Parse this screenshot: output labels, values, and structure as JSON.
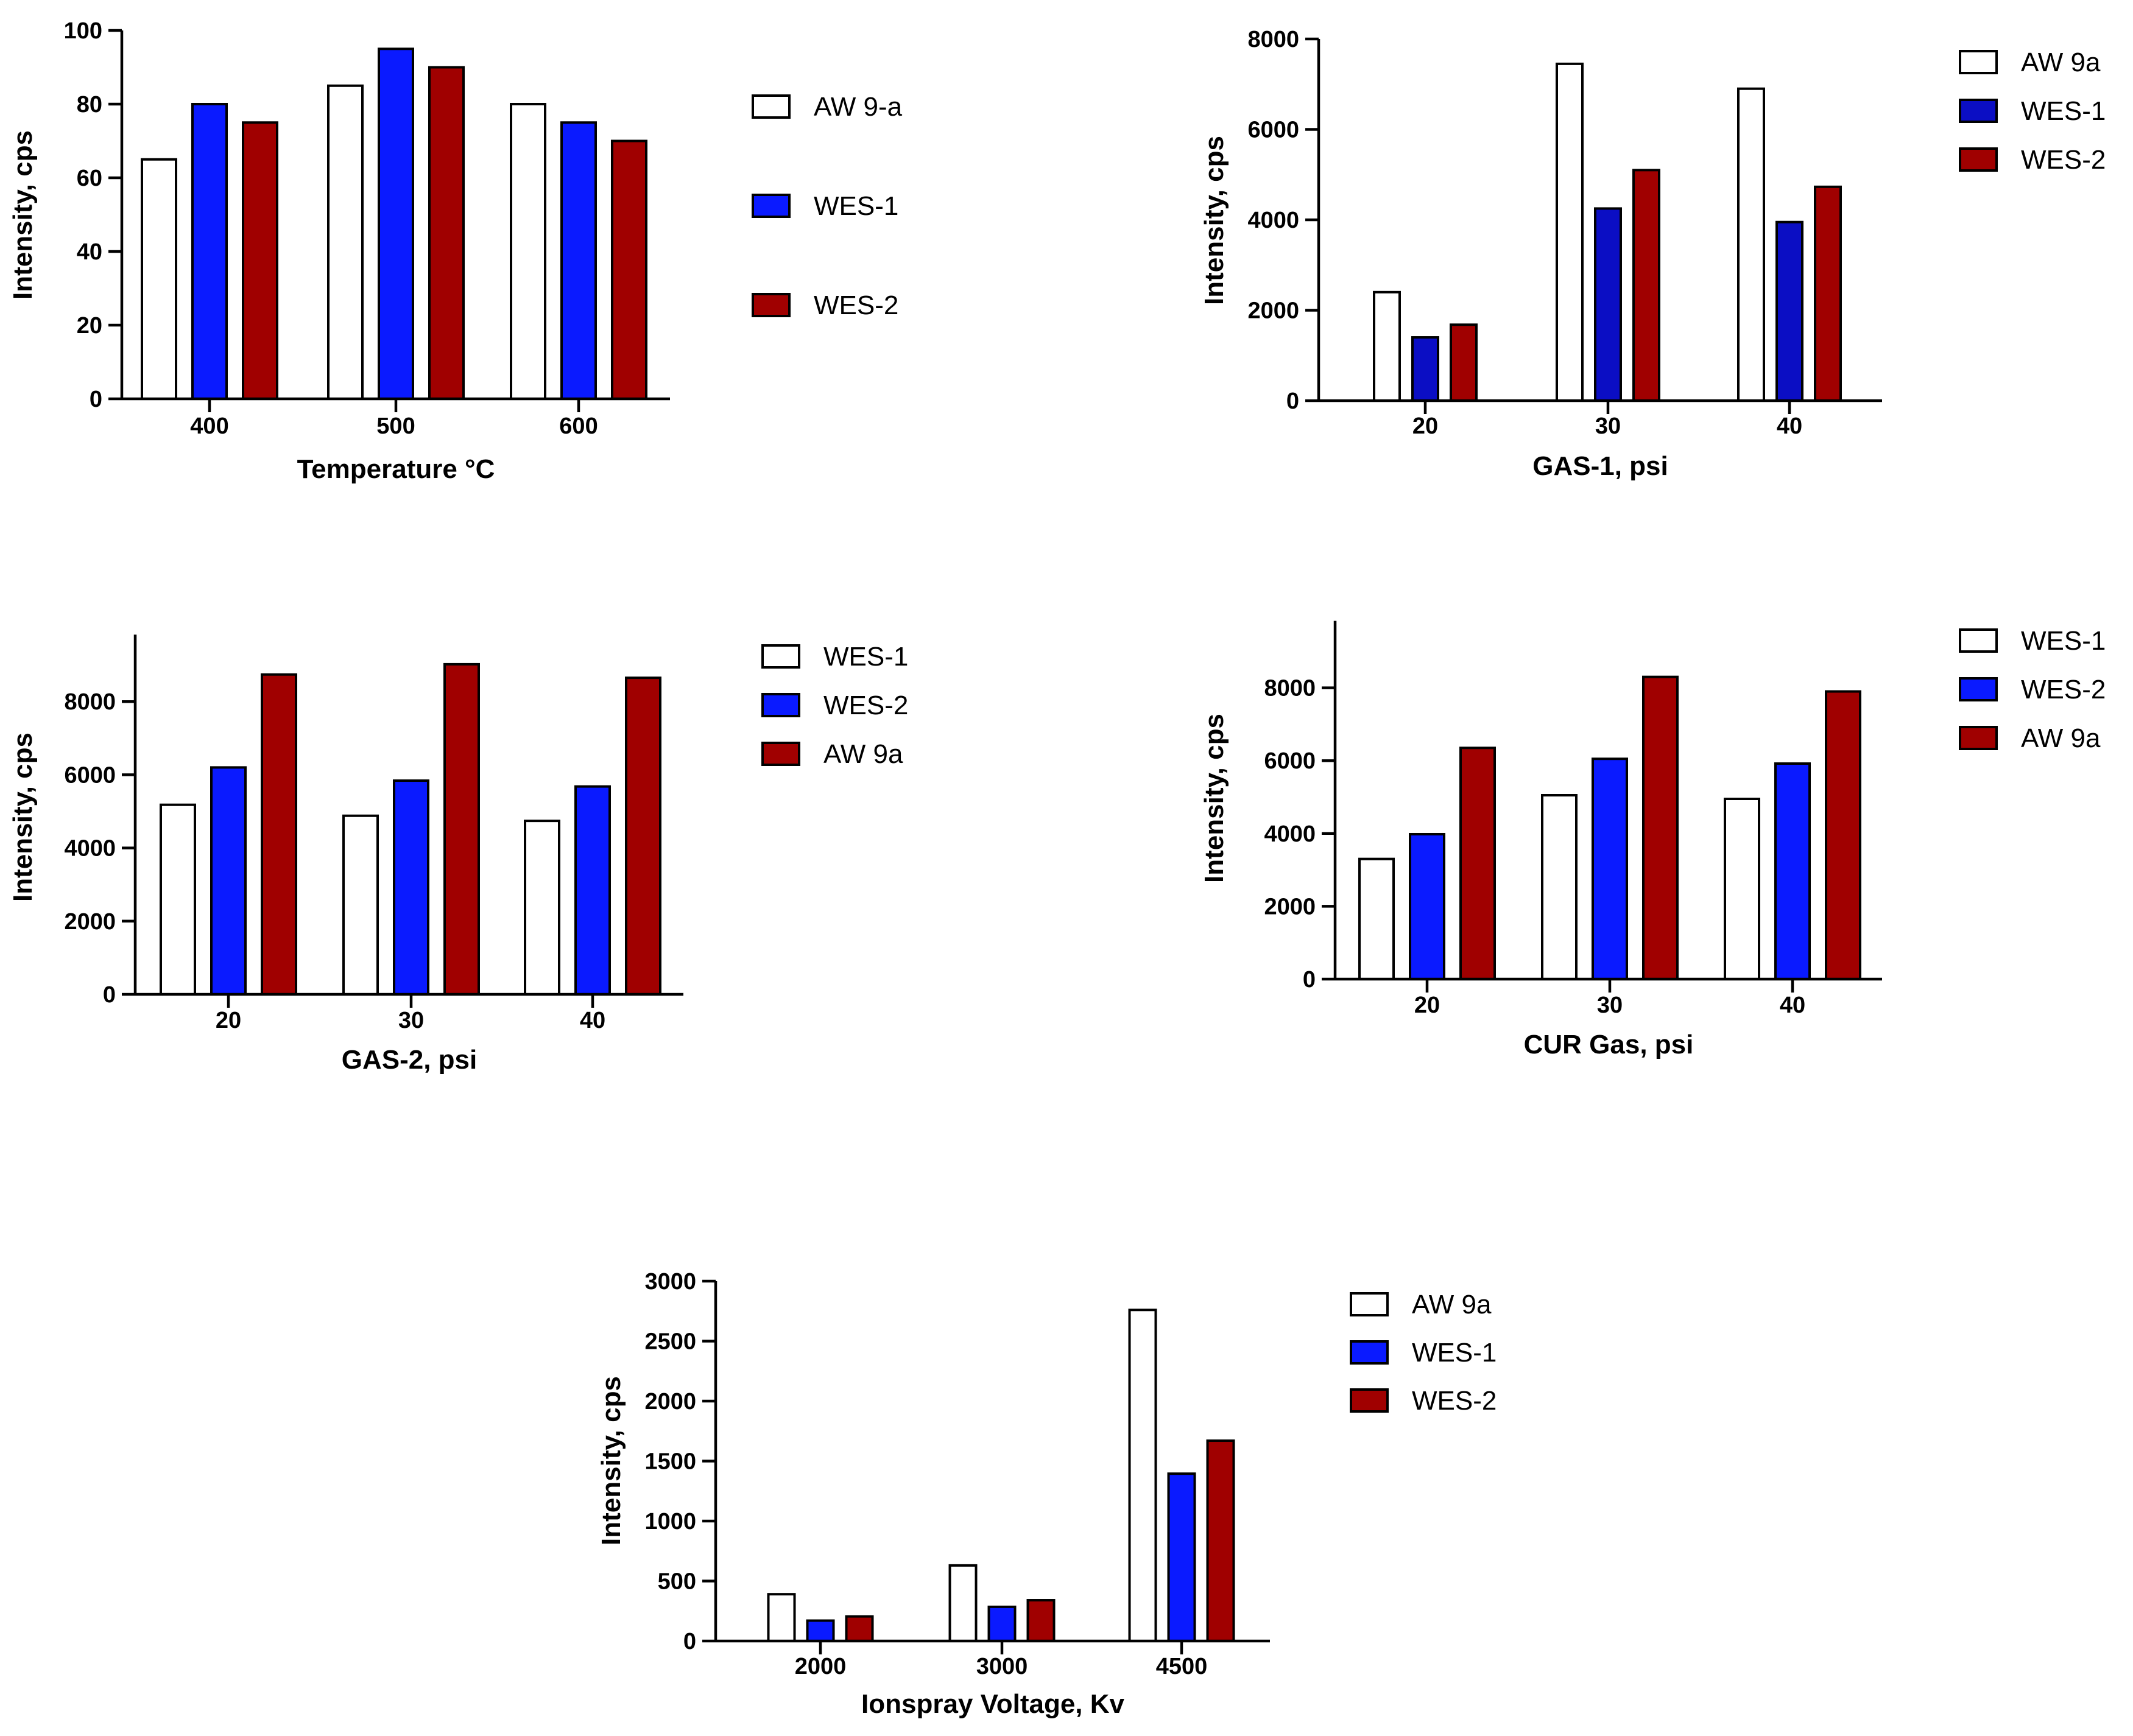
{
  "colors": {
    "white": "#ffffff",
    "blue": "#0a1aff",
    "navy": "#0b0ec4",
    "red": "#a00000",
    "outline": "#000000"
  },
  "chart_data": [
    {
      "type": "bar",
      "id": "temperature",
      "xlabel": "Temperature °C",
      "ylabel": "Intensity, cps",
      "categories": [
        "400",
        "500",
        "600"
      ],
      "ylim": [
        0,
        100
      ],
      "yticks": [
        0,
        20,
        40,
        60,
        80,
        100
      ],
      "ytick_labels": [
        "0",
        "20",
        "40",
        "60",
        "80",
        "100"
      ],
      "series": [
        {
          "name": "AW 9-a",
          "color": "#ffffff",
          "values": [
            65,
            85,
            80
          ]
        },
        {
          "name": "WES-1",
          "color": "#0a1aff",
          "values": [
            80,
            95,
            75
          ]
        },
        {
          "name": "WES-2",
          "color": "#a00000",
          "values": [
            75,
            90,
            70
          ]
        }
      ],
      "legend": "right"
    },
    {
      "type": "bar",
      "id": "gas1",
      "xlabel": "GAS-1, psi",
      "ylabel": "Intensity, cps",
      "categories": [
        "20",
        "30",
        "40"
      ],
      "ylim": [
        0,
        8000
      ],
      "yticks": [
        0,
        2000,
        4000,
        6000,
        8000
      ],
      "ytick_labels": [
        "0",
        "2000",
        "4000",
        "6000",
        "8000"
      ],
      "series": [
        {
          "name": "AW 9a",
          "color": "#ffffff",
          "values": [
            2400,
            7450,
            6900
          ]
        },
        {
          "name": "WES-1",
          "color": "#0b0ec4",
          "values": [
            1400,
            4250,
            3950
          ]
        },
        {
          "name": "WES-2",
          "color": "#a00000",
          "values": [
            1680,
            5100,
            4730
          ]
        }
      ],
      "legend": "right"
    },
    {
      "type": "bar",
      "id": "gas2",
      "xlabel": "GAS-2, psi",
      "ylabel": "Intensity, cps",
      "categories": [
        "20",
        "30",
        "40"
      ],
      "ylim": [
        0,
        10000
      ],
      "yticks": [
        0,
        2000,
        4000,
        6000,
        8000
      ],
      "ytick_labels": [
        "0",
        "2000",
        "4000",
        "6000",
        "8000"
      ],
      "series": [
        {
          "name": "WES-1",
          "color": "#ffffff",
          "values": [
            5180,
            4880,
            4740
          ]
        },
        {
          "name": "WES-2",
          "color": "#0a1aff",
          "values": [
            6200,
            5840,
            5680
          ]
        },
        {
          "name": "AW 9a",
          "color": "#a00000",
          "values": [
            8740,
            9020,
            8650
          ]
        }
      ],
      "legend": "right"
    },
    {
      "type": "bar",
      "id": "curgas",
      "xlabel": "CUR Gas, psi",
      "ylabel": "Intensity, cps",
      "categories": [
        "20",
        "30",
        "40"
      ],
      "ylim": [
        0,
        10000
      ],
      "yticks": [
        0,
        2000,
        4000,
        6000,
        8000
      ],
      "ytick_labels": [
        "0",
        "2000",
        "4000",
        "6000",
        "8000"
      ],
      "series": [
        {
          "name": "WES-1",
          "color": "#ffffff",
          "values": [
            3300,
            5050,
            4950
          ]
        },
        {
          "name": "WES-2",
          "color": "#0a1aff",
          "values": [
            3980,
            6050,
            5920
          ]
        },
        {
          "name": "AW 9a",
          "color": "#a00000",
          "values": [
            6350,
            8300,
            7900
          ]
        }
      ],
      "legend": "right"
    },
    {
      "type": "bar",
      "id": "ionspray",
      "xlabel": "Ionspray Voltage, Kv",
      "ylabel": "Intensity, cps",
      "categories": [
        "2000",
        "3000",
        "4500"
      ],
      "ylim": [
        0,
        3000
      ],
      "yticks": [
        0,
        500,
        1000,
        1500,
        2000,
        2500,
        3000
      ],
      "ytick_labels": [
        "0",
        "500",
        "1000",
        "1500",
        "2000",
        "2500",
        "3000"
      ],
      "series": [
        {
          "name": "AW 9a",
          "color": "#ffffff",
          "values": [
            390,
            630,
            2760
          ]
        },
        {
          "name": "WES-1",
          "color": "#0a1aff",
          "values": [
            170,
            285,
            1395
          ]
        },
        {
          "name": "WES-2",
          "color": "#a00000",
          "values": [
            205,
            340,
            1670
          ]
        }
      ],
      "legend": "right"
    }
  ]
}
